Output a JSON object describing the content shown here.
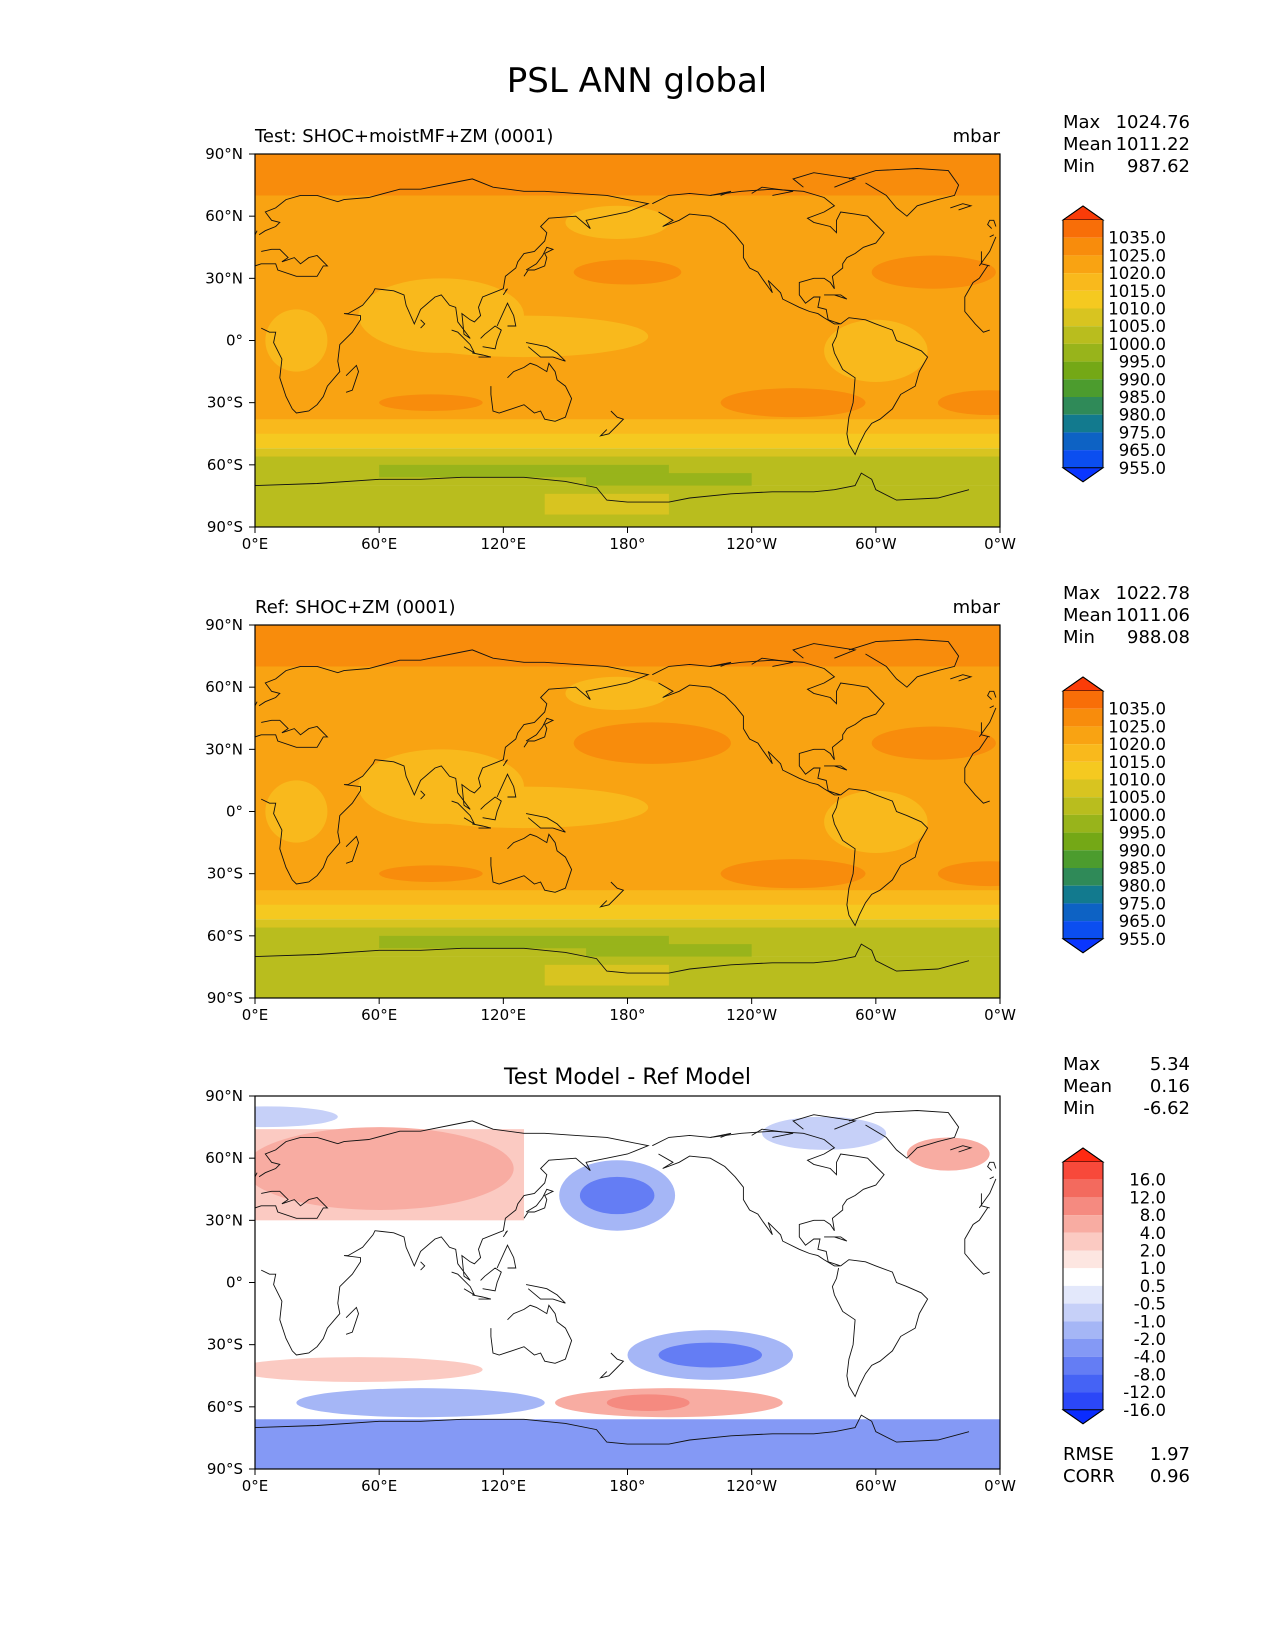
{
  "chart_data": {
    "title": "PSL ANN global",
    "x_ticks": [
      "0°E",
      "60°E",
      "120°E",
      "180°",
      "120°W",
      "60°W",
      "0°W"
    ],
    "y_ticks": [
      "90°N",
      "60°N",
      "30°N",
      "0°",
      "30°S",
      "60°S",
      "90°S"
    ],
    "panels": [
      {
        "id": "test",
        "type": "contour-map",
        "title_left": "Test: SHOC+moistMF+ZM (0001)",
        "title_center": "",
        "units": "mbar",
        "stats": [
          {
            "label": "Max",
            "value": "1024.76"
          },
          {
            "label": "Mean",
            "value": "1011.22"
          },
          {
            "label": "Min",
            "value": "987.62"
          }
        ],
        "colorbar_labels": [
          "1035.0",
          "1025.0",
          "1020.0",
          "1015.0",
          "1010.0",
          "1005.0",
          "1000.0",
          "995.0",
          "990.0",
          "985.0",
          "980.0",
          "975.0",
          "965.0",
          "955.0"
        ],
        "colorbar_colors": [
          "#fa3c08",
          "#f86e08",
          "#f88c0c",
          "#f9a312",
          "#f9b91c",
          "#f5c920",
          "#d8c420",
          "#b9bd1e",
          "#98b41b",
          "#74a816",
          "#4c9c2e",
          "#2f8a58",
          "#127a8e",
          "#0d62c4",
          "#0b4ef0",
          "#0a36ff"
        ]
      },
      {
        "id": "ref",
        "type": "contour-map",
        "title_left": "Ref: SHOC+ZM (0001)",
        "title_center": "",
        "units": "mbar",
        "stats": [
          {
            "label": "Max",
            "value": "1022.78"
          },
          {
            "label": "Mean",
            "value": "1011.06"
          },
          {
            "label": "Min",
            "value": "988.08"
          }
        ],
        "colorbar_labels": [
          "1035.0",
          "1025.0",
          "1020.0",
          "1015.0",
          "1010.0",
          "1005.0",
          "1000.0",
          "995.0",
          "990.0",
          "985.0",
          "980.0",
          "975.0",
          "965.0",
          "955.0"
        ],
        "colorbar_colors": [
          "#fa3c08",
          "#f86e08",
          "#f88c0c",
          "#f9a312",
          "#f9b91c",
          "#f5c920",
          "#d8c420",
          "#b9bd1e",
          "#98b41b",
          "#74a816",
          "#4c9c2e",
          "#2f8a58",
          "#127a8e",
          "#0d62c4",
          "#0b4ef0",
          "#0a36ff"
        ]
      },
      {
        "id": "diff",
        "type": "contour-map",
        "title_left": "",
        "title_center": "Test Model - Ref Model",
        "units": "",
        "stats": [
          {
            "label": "Max",
            "value": "5.34"
          },
          {
            "label": "Mean",
            "value": "0.16"
          },
          {
            "label": "Min",
            "value": "-6.62"
          }
        ],
        "extra_stats": [
          {
            "label": "RMSE",
            "value": "1.97"
          },
          {
            "label": "CORR",
            "value": "0.96"
          }
        ],
        "colorbar_labels": [
          "16.0",
          "12.0",
          "8.0",
          "4.0",
          "2.0",
          "1.0",
          "0.5",
          "-0.5",
          "-1.0",
          "-2.0",
          "-4.0",
          "-8.0",
          "-12.0",
          "-16.0"
        ],
        "colorbar_colors": [
          "#ff2a12",
          "#f8493a",
          "#f36a5e",
          "#f58a80",
          "#f8aca2",
          "#fbcac2",
          "#fde6e1",
          "#ffffff",
          "#e3e8fb",
          "#c6d0f8",
          "#a5b6f6",
          "#8499f5",
          "#647df4",
          "#4563f5",
          "#2b47f8",
          "#0a2cff"
        ]
      }
    ]
  }
}
